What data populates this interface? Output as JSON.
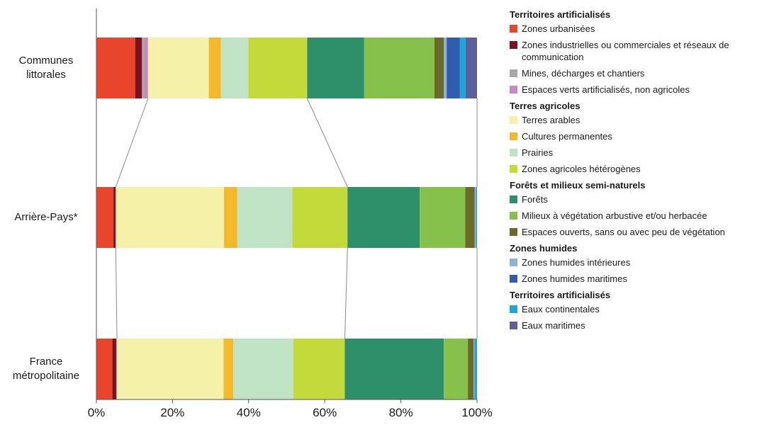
{
  "chart_data": {
    "type": "bar",
    "orientation": "horizontal",
    "stacked": "percent",
    "categories": [
      "Communes littorales",
      "Arrière-Pays*",
      "France métropolitaine"
    ],
    "xlim": [
      0,
      100
    ],
    "x_ticks": [
      "0%",
      "20%",
      "40%",
      "60%",
      "80%",
      "100%"
    ],
    "grid": false,
    "legend_position": "right",
    "series": [
      {
        "name": "Zones urbanisées",
        "color": "#e8452a",
        "values": [
          10.2,
          4.5,
          4.2
        ]
      },
      {
        "name": "Zones industrielles ou commerciales et réseaux de communication",
        "color": "#7a1020",
        "values": [
          1.8,
          0.6,
          1.0
        ]
      },
      {
        "name": "Mines, décharges et chantiers",
        "color": "#a8a8a8",
        "values": [
          0.6,
          0.0,
          0.1
        ]
      },
      {
        "name": "Espaces verts artificialisés, non agricoles",
        "color": "#c58bc1",
        "values": [
          1.0,
          0.0,
          0.1
        ]
      },
      {
        "name": "Terres arables",
        "color": "#f6f1a8",
        "values": [
          16.0,
          28.5,
          28.0
        ]
      },
      {
        "name": "Cultures permanentes",
        "color": "#f4b92a",
        "values": [
          3.2,
          3.5,
          2.5
        ]
      },
      {
        "name": "Prairies",
        "color": "#bfe3c4",
        "values": [
          7.2,
          14.5,
          15.8
        ]
      },
      {
        "name": "Zones agricoles hétérogènes",
        "color": "#c4d93a",
        "values": [
          15.5,
          14.5,
          13.5
        ]
      },
      {
        "name": "Forêts",
        "color": "#2e8f6b",
        "values": [
          15.0,
          19.0,
          26.0
        ]
      },
      {
        "name": "Milieux à végétation arbustive et/ou herbacée",
        "color": "#86c24b",
        "values": [
          18.5,
          12.0,
          6.3
        ]
      },
      {
        "name": "Espaces ouverts, sans ou avec peu de végétation",
        "color": "#6b6a2a",
        "values": [
          2.5,
          2.5,
          1.5
        ]
      },
      {
        "name": "Zones humides intérieures",
        "color": "#8fb3d6",
        "values": [
          0.7,
          0.3,
          0.2
        ]
      },
      {
        "name": "Zones humides maritimes",
        "color": "#2f5db0",
        "values": [
          3.5,
          0.0,
          0.1
        ]
      },
      {
        "name": "Eaux continentales",
        "color": "#1ea6d8",
        "values": [
          1.5,
          0.3,
          0.6
        ]
      },
      {
        "name": "Eaux maritimes",
        "color": "#5f5e9c",
        "values": [
          3.0,
          0.0,
          0.0
        ]
      }
    ],
    "legend_groups": [
      {
        "title": "Territoires artificialisés",
        "items": [
          0,
          1,
          2,
          3
        ]
      },
      {
        "title": "Terres agricoles",
        "items": [
          4,
          5,
          6,
          7
        ]
      },
      {
        "title": "Forêts et milieux semi-naturels",
        "items": [
          8,
          9,
          10
        ]
      },
      {
        "title": "Zones humides",
        "items": [
          11,
          12
        ]
      },
      {
        "title": "Territoires artificialisés",
        "items": [
          13,
          14
        ]
      }
    ],
    "connectors": [
      3,
      7,
      14
    ]
  }
}
